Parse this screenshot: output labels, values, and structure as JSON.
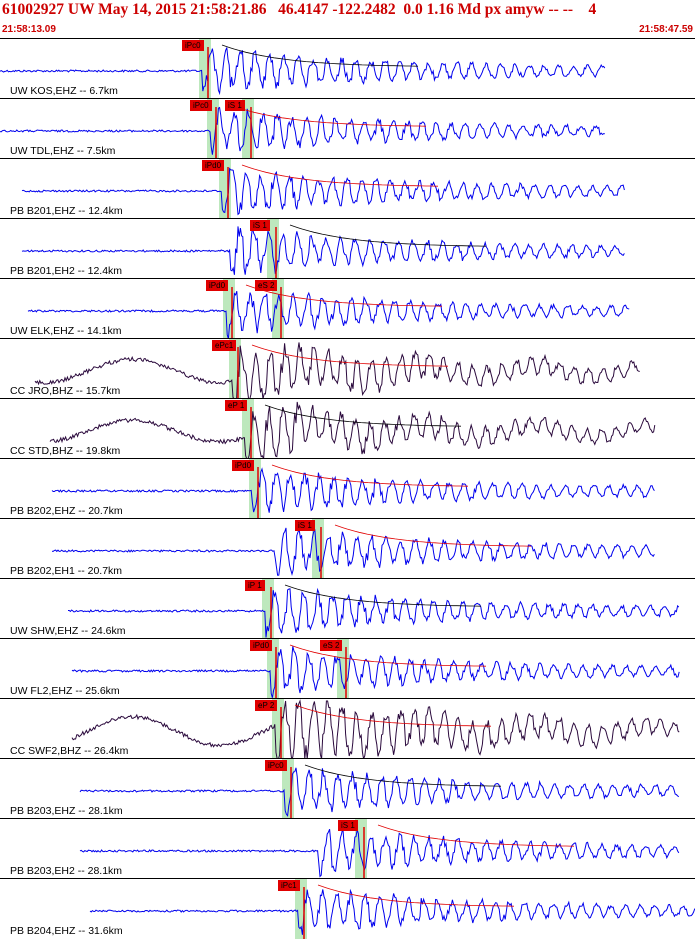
{
  "header": {
    "title": "61002927 UW May 14, 2015 21:58:21.86   46.4147 -122.2482  0.0 1.16 Md px amyw -- --    4",
    "start_time": "21:58:13.09",
    "end_time": "21:58:47.59"
  },
  "colors": {
    "header_text": "#cc0000",
    "trace_blue": "#0000ee",
    "trace_dark": "#2b0a3d",
    "pick": "#e00000",
    "window": "#bde8bd"
  },
  "stations": [
    {
      "label": "UW KOS,EHZ -- 6.7km",
      "trace": "blue",
      "picks": [
        "iPc0"
      ]
    },
    {
      "label": "UW TDL,EHZ -- 7.5km",
      "trace": "blue",
      "picks": [
        "iPc0",
        "iS 1"
      ]
    },
    {
      "label": "PB B201,EHZ -- 12.4km",
      "trace": "blue",
      "picks": [
        "iPd0"
      ]
    },
    {
      "label": "PB B201,EH2 -- 12.4km",
      "trace": "blue",
      "picks": [
        "iS 1"
      ]
    },
    {
      "label": "UW ELK,EHZ -- 14.1km",
      "trace": "blue",
      "picks": [
        "iPd0",
        "eS 2"
      ]
    },
    {
      "label": "CC JRO,BHZ -- 15.7km",
      "trace": "dark",
      "picks": [
        "ePc1"
      ]
    },
    {
      "label": "CC STD,BHZ -- 19.8km",
      "trace": "dark",
      "picks": [
        "eP 1"
      ]
    },
    {
      "label": "PB B202,EHZ -- 20.7km",
      "trace": "blue",
      "picks": [
        "iPd0"
      ]
    },
    {
      "label": "PB B202,EH1 -- 20.7km",
      "trace": "blue",
      "picks": [
        "iS 1"
      ]
    },
    {
      "label": "UW SHW,EHZ -- 24.6km",
      "trace": "blue",
      "picks": [
        "iP 1"
      ]
    },
    {
      "label": "UW FL2,EHZ -- 25.6km",
      "trace": "blue",
      "picks": [
        "iPd0",
        "eS 2"
      ]
    },
    {
      "label": "CC SWF2,BHZ -- 26.4km",
      "trace": "dark",
      "picks": [
        "eP 2"
      ]
    },
    {
      "label": "PB B203,EHZ -- 28.1km",
      "trace": "blue",
      "picks": [
        "iPc0"
      ]
    },
    {
      "label": "PB B203,EH2 -- 28.1km",
      "trace": "blue",
      "picks": [
        "iS 1"
      ]
    },
    {
      "label": "PB B204,EHZ -- 31.6km",
      "trace": "blue",
      "picks": [
        "iPc1"
      ]
    }
  ]
}
